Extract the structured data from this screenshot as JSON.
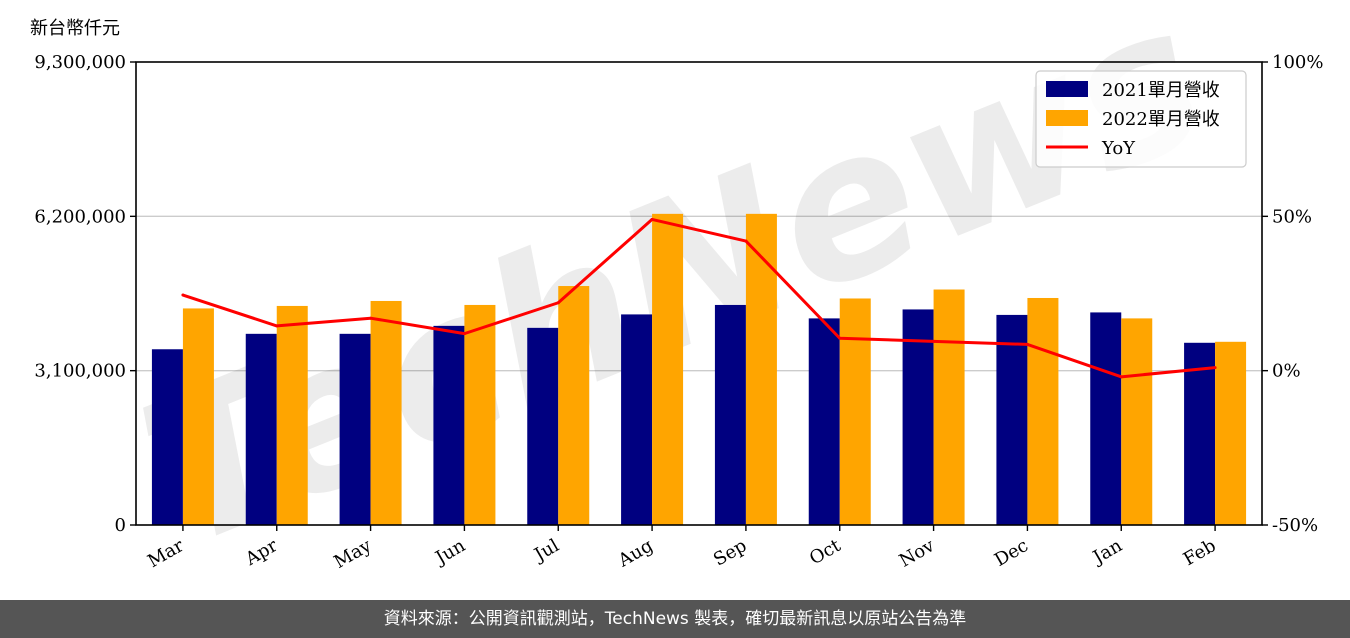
{
  "chart_data": {
    "type": "bar",
    "y_unit_label": "新台幣仟元",
    "categories": [
      "Mar",
      "Apr",
      "May",
      "Jun",
      "Jul",
      "Aug",
      "Sep",
      "Oct",
      "Nov",
      "Dec",
      "Jan",
      "Feb"
    ],
    "series": [
      {
        "name": "2021單月營收",
        "type": "bar",
        "color": "#000080",
        "values": [
          3530000,
          3840000,
          3840000,
          4000000,
          3960000,
          4230000,
          4420000,
          4150000,
          4330000,
          4220000,
          4270000,
          3660000
        ]
      },
      {
        "name": "2022單月營收",
        "type": "bar",
        "color": "#ffa500",
        "values": [
          4350000,
          4400000,
          4500000,
          4420000,
          4800000,
          6250000,
          6250000,
          4550000,
          4730000,
          4560000,
          4150000,
          3680000
        ]
      },
      {
        "name": "YoY",
        "type": "line",
        "axis": "right",
        "color": "#ff0000",
        "values": [
          24.5,
          14.5,
          17.0,
          12.0,
          22.0,
          49.0,
          42.0,
          10.5,
          9.5,
          8.5,
          -2.0,
          1.0
        ]
      }
    ],
    "ylim": [
      0,
      9300000
    ],
    "yticks": [
      0,
      3100000,
      6200000,
      9300000
    ],
    "ytick_labels": [
      "0",
      "3,100,000",
      "6,200,000",
      "9,300,000"
    ],
    "y2lim": [
      -50,
      100
    ],
    "y2ticks": [
      -50,
      0,
      50,
      100
    ],
    "y2tick_labels": [
      "-50%",
      "0%",
      "50%",
      "100%"
    ],
    "grid": "horizontal",
    "legend_position": "top-right"
  },
  "watermark": "TechNews",
  "footer": {
    "text": "資料來源：公開資訊觀測站，TechNews 製表，確切最新訊息以原站公告為準"
  }
}
